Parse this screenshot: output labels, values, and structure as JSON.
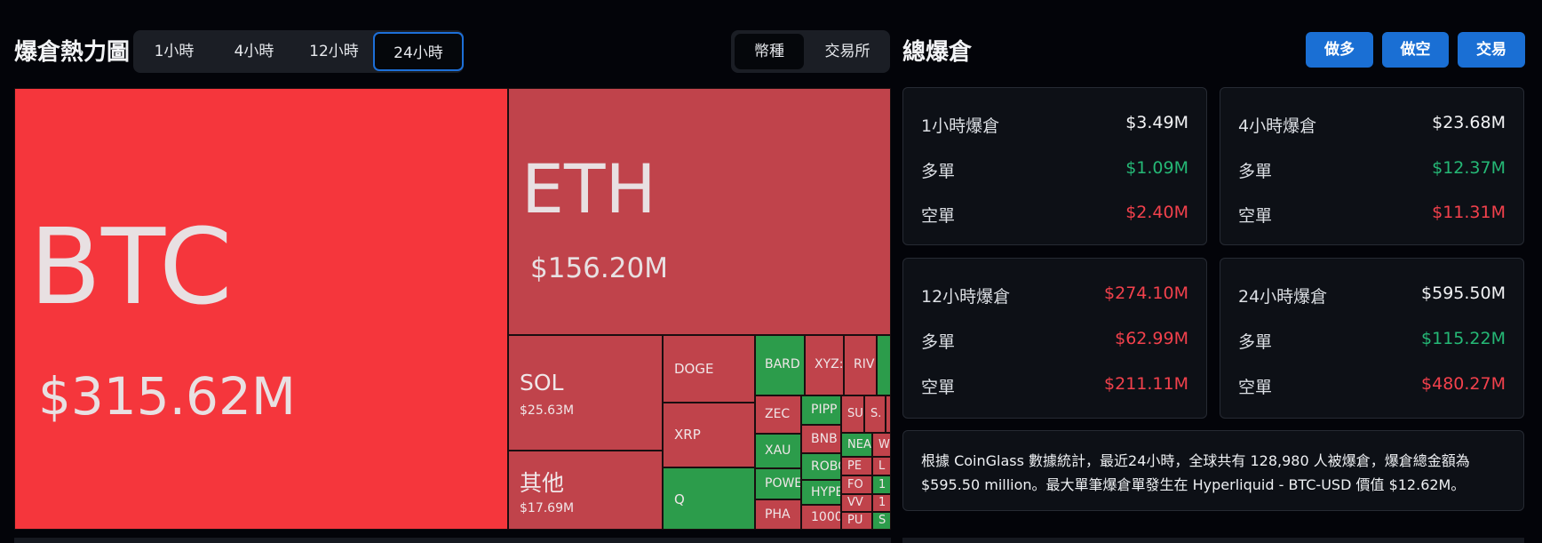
{
  "heatmap": {
    "title": "爆倉熱力圖",
    "time_tabs": [
      "1小時",
      "4小時",
      "12小時",
      "24小時"
    ],
    "active_time_tab": "24小時",
    "view_tabs": [
      "幣種",
      "交易所"
    ],
    "active_view_tab": "幣種",
    "cells": {
      "btc": {
        "symbol": "BTC",
        "value": "$315.62M"
      },
      "eth": {
        "symbol": "ETH",
        "value": "$156.20M"
      },
      "sol": {
        "symbol": "SOL",
        "value": "$25.63M"
      },
      "other": {
        "symbol": "其他",
        "value": "$17.69M"
      },
      "doge": {
        "symbol": "DOGE"
      },
      "xrp": {
        "symbol": "XRP"
      },
      "q": {
        "symbol": "Q"
      },
      "bard": {
        "symbol": "BARD"
      },
      "xyz": {
        "symbol": "XYZ:"
      },
      "riv": {
        "symbol": "RIV"
      },
      "zec": {
        "symbol": "ZEC"
      },
      "xau": {
        "symbol": "XAU"
      },
      "powe": {
        "symbol": "POWE"
      },
      "pha": {
        "symbol": "PHA"
      },
      "pipp": {
        "symbol": "PIPP"
      },
      "bnb": {
        "symbol": "BNB"
      },
      "robo": {
        "symbol": "ROBO"
      },
      "hype": {
        "symbol": "HYPE"
      },
      "n1000": {
        "symbol": "1000"
      },
      "su": {
        "symbol": "SU"
      },
      "s_": {
        "symbol": "S."
      },
      "nea": {
        "symbol": "NEA"
      },
      "pe": {
        "symbol": "PE"
      },
      "fo": {
        "symbol": "FO"
      },
      "vv": {
        "symbol": "VV"
      },
      "pu": {
        "symbol": "PU"
      },
      "w": {
        "symbol": "W"
      },
      "l": {
        "symbol": "L"
      },
      "one_a": {
        "symbol": "1"
      },
      "one_b": {
        "symbol": "1"
      },
      "s_small": {
        "symbol": "S"
      }
    }
  },
  "total": {
    "title": "總爆倉",
    "buttons": {
      "long": "做多",
      "short": "做空",
      "trade": "交易"
    },
    "cards": [
      {
        "label": "1小時爆倉",
        "total": "$3.49M",
        "long_label": "多單",
        "long": "$1.09M",
        "short_label": "空單",
        "short": "$2.40M"
      },
      {
        "label": "4小時爆倉",
        "total": "$23.68M",
        "long_label": "多單",
        "long": "$12.37M",
        "short_label": "空單",
        "short": "$11.31M"
      },
      {
        "label": "12小時爆倉",
        "total": "$274.10M",
        "long_label": "多單",
        "long": "$62.99M",
        "short_label": "空單",
        "short": "$211.11M"
      },
      {
        "label": "24小時爆倉",
        "total": "$595.50M",
        "long_label": "多單",
        "long": "$115.22M",
        "short_label": "空單",
        "short": "$480.27M"
      }
    ],
    "note": "根據 CoinGlass 數據統計，最近24小時，全球共有 128,980 人被爆倉，爆倉總金額為 $595.50 million。最大單筆爆倉單發生在 Hyperliquid - BTC-USD 價值 $12.62M。"
  },
  "colors": {
    "accent_blue": "#1a6fd4",
    "long_green": "#25b876",
    "short_red": "#f2414c",
    "cell_red_bright": "#f5363c",
    "cell_red": "#c0434b",
    "cell_green": "#2c9c4b"
  }
}
